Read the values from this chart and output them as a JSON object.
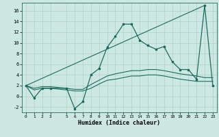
{
  "xlabel": "Humidex (Indice chaleur)",
  "ylabel": "",
  "bg_color": "#cde8e2",
  "line_color": "#1a6b5e",
  "grid_color": "#b0d0c8",
  "xlim": [
    -0.5,
    23.5
  ],
  "ylim": [
    -3.0,
    17.5
  ],
  "yticks": [
    -2,
    0,
    2,
    4,
    6,
    8,
    10,
    12,
    14,
    16
  ],
  "xticks": [
    0,
    1,
    2,
    3,
    5,
    6,
    7,
    8,
    9,
    10,
    11,
    12,
    13,
    14,
    15,
    16,
    17,
    18,
    19,
    20,
    21,
    22,
    23
  ],
  "main_line_x": [
    0,
    1,
    2,
    3,
    5,
    6,
    7,
    8,
    9,
    10,
    11,
    12,
    13,
    14,
    15,
    16,
    17,
    18,
    19,
    20,
    21,
    22,
    23
  ],
  "main_line_y": [
    2.0,
    -0.3,
    1.5,
    1.5,
    1.5,
    -2.3,
    -1.0,
    4.0,
    5.2,
    9.2,
    11.2,
    13.5,
    13.5,
    10.5,
    9.5,
    8.8,
    9.3,
    6.5,
    5.0,
    5.0,
    3.2,
    17.0,
    2.0
  ],
  "diag_line_x": [
    0,
    22
  ],
  "diag_line_y": [
    2.0,
    17.0
  ],
  "band_upper_x": [
    0,
    1,
    2,
    3,
    5,
    6,
    7,
    8,
    9,
    10,
    11,
    12,
    13,
    14,
    15,
    16,
    17,
    18,
    19,
    20,
    21,
    22,
    23
  ],
  "band_upper_y": [
    2.0,
    1.5,
    1.8,
    1.8,
    1.5,
    1.3,
    1.3,
    2.2,
    3.0,
    3.8,
    4.2,
    4.5,
    4.8,
    4.8,
    5.0,
    5.0,
    4.8,
    4.5,
    4.2,
    4.0,
    3.8,
    3.5,
    3.5
  ],
  "band_lower_x": [
    0,
    1,
    2,
    3,
    5,
    6,
    7,
    8,
    9,
    10,
    11,
    12,
    13,
    14,
    15,
    16,
    17,
    18,
    19,
    20,
    21,
    22,
    23
  ],
  "band_lower_y": [
    2.0,
    1.2,
    1.5,
    1.5,
    1.2,
    1.0,
    1.0,
    1.5,
    2.3,
    3.0,
    3.2,
    3.5,
    3.8,
    3.8,
    4.0,
    4.0,
    3.8,
    3.5,
    3.2,
    3.0,
    2.8,
    2.8,
    2.8
  ]
}
